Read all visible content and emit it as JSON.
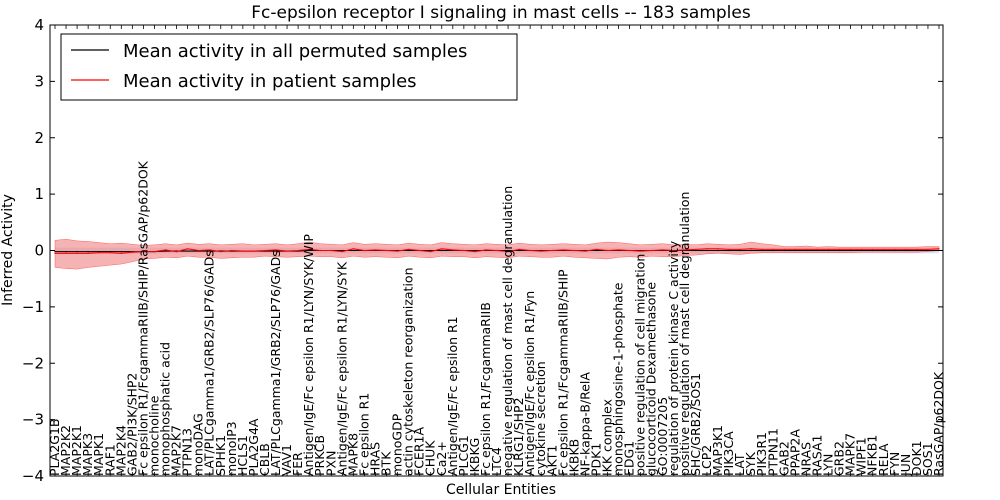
{
  "chart_data": {
    "type": "line",
    "title": "Fc-epsilon receptor I signaling in mast cells -- 183 samples",
    "xlabel": "Cellular Entities",
    "ylabel": "Inferred Activity",
    "ylim": [
      -4,
      4
    ],
    "yticks": [
      -4,
      -3,
      -2,
      -1,
      0,
      1,
      2,
      3,
      4
    ],
    "ytick_labels": [
      "−4",
      "−3",
      "−2",
      "−1",
      "0",
      "1",
      "2",
      "3",
      "4"
    ],
    "grid": false,
    "legend_position": "top-left",
    "categories": [
      "PLA2G1B",
      "MAP2K2",
      "MAP2K1",
      "MAPK3",
      "MAPK1",
      "RAF1",
      "MAP2K4",
      "GAB2/PI3K/SHP2",
      "Fc epsilon R1/FcgammaRIIB/SHIP/RasGAP/p62DOK",
      "monocholine",
      "monophosphatic acid",
      "MAP2K7",
      "PTPN13",
      "monoDAG",
      "LAT/PLCgamma1/GRB2/SLP76/GADs",
      "SPHK1",
      "monoIP3",
      "HCLS1",
      "PLA2G4A",
      "CBLB",
      "LAT/PLCgamma1/GRB2/SLP76/GADs",
      "VAV1",
      "FER",
      "Antigen/IgE/Fc epsilon R1/LYN/SYK/WIP",
      "PRKCB",
      "PXN",
      "Antigen/IgE/Fc epsilon R1/LYN/SYK",
      "MAPK8",
      "Fc epsilon R1",
      "HRAS",
      "BTK",
      "monoGDP",
      "actin cytoskeleton reorganization",
      "FCER1A",
      "CHUK",
      "Ca2+",
      "Antigen/IgE/Fc epsilon R1",
      "PLCG1",
      "IKBKG",
      "Fc epsilon R1/FcgammaRIIB",
      "LTC4",
      "negative regulation of mast cell degranulation",
      "KLRG1/SHP2",
      "Antigen/IgE/Fc epsilon R1/Fyn",
      "cytokine secretion",
      "AKT1",
      "Fc epsilon R1/FcgammaRIIB/SHIP",
      "IKBKB",
      "NF-kappa-B/RelA",
      "PDK1",
      "IKK complex",
      "monosphingosine-1-phosphate",
      "EDG1",
      "positive regulation of cell migration",
      "glucocorticoid Dexamethasone",
      "GO:0007205",
      "regulation of protein kinase C activity",
      "positive regulation of mast cell degranulation",
      "SHC/GRB2/SOS1",
      "LCP2",
      "MAP3K1",
      "PIK3CA",
      "LAT",
      "SYK",
      "PIK3R1",
      "PTPN11",
      "GAB2",
      "PPAP2A",
      "NRAS",
      "RASA1",
      "LYN",
      "GRB2",
      "MAPK7",
      "WIPF1",
      "NFKB1",
      "RELA",
      "FYN",
      "JUN",
      "DOK1",
      "SOS1",
      "RasGAP/p62DOK"
    ],
    "series": [
      {
        "name": "Mean activity in all permuted samples",
        "color": "#000000",
        "values": [
          -0.02,
          -0.02,
          -0.02,
          -0.02,
          -0.02,
          -0.02,
          -0.02,
          -0.02,
          -0.02,
          -0.02,
          -0.01,
          -0.01,
          -0.01,
          -0.01,
          -0.01,
          -0.01,
          -0.01,
          -0.01,
          -0.01,
          -0.01,
          -0.01,
          -0.01,
          -0.01,
          0.0,
          0.0,
          0.0,
          0.0,
          0.0,
          0.0,
          0.0,
          0.0,
          0.0,
          0.0,
          0.0,
          0.0,
          0.0,
          0.0,
          0.0,
          0.0,
          0.0,
          0.0,
          0.0,
          0.0,
          0.0,
          0.0,
          0.0,
          0.0,
          0.0,
          0.0,
          0.0,
          0.0,
          0.0,
          0.0,
          0.0,
          0.0,
          0.0,
          0.0,
          0.0,
          0.0,
          0.0,
          0.0,
          0.0,
          0.0,
          0.0,
          0.0,
          0.0,
          0.0,
          0.0,
          0.0,
          0.0,
          0.0,
          0.0,
          0.0,
          0.0,
          0.0,
          0.0,
          0.0,
          0.0,
          0.0,
          0.0,
          0.0
        ],
        "band_low": [
          -0.06,
          -0.06,
          -0.06,
          -0.06,
          -0.06,
          -0.06,
          -0.06,
          -0.06,
          -0.06,
          -0.06,
          -0.05,
          -0.05,
          -0.05,
          -0.05,
          -0.05,
          -0.05,
          -0.05,
          -0.05,
          -0.05,
          -0.05,
          -0.05,
          -0.05,
          -0.05,
          -0.05,
          -0.05,
          -0.05,
          -0.05,
          -0.05,
          -0.05,
          -0.05,
          -0.05,
          -0.05,
          -0.05,
          -0.05,
          -0.05,
          -0.05,
          -0.05,
          -0.05,
          -0.05,
          -0.05,
          -0.05,
          -0.05,
          -0.05,
          -0.05,
          -0.05,
          -0.05,
          -0.05,
          -0.05,
          -0.05,
          -0.05,
          -0.05,
          -0.05,
          -0.05,
          -0.05,
          -0.05,
          -0.05,
          -0.05,
          -0.05,
          -0.05,
          -0.05,
          -0.05,
          -0.05,
          -0.05,
          -0.05,
          -0.05,
          -0.05,
          -0.05,
          -0.05,
          -0.05,
          -0.05,
          -0.05,
          -0.05,
          -0.05,
          -0.05,
          -0.05,
          -0.05,
          -0.05,
          -0.05,
          -0.05,
          -0.05,
          -0.05
        ],
        "band_high": [
          0.05,
          0.05,
          0.05,
          0.05,
          0.05,
          0.05,
          0.05,
          0.05,
          0.05,
          0.05,
          0.05,
          0.05,
          0.05,
          0.05,
          0.05,
          0.05,
          0.05,
          0.05,
          0.05,
          0.05,
          0.05,
          0.05,
          0.05,
          0.05,
          0.05,
          0.05,
          0.05,
          0.05,
          0.05,
          0.05,
          0.05,
          0.05,
          0.05,
          0.05,
          0.05,
          0.05,
          0.05,
          0.05,
          0.05,
          0.05,
          0.05,
          0.05,
          0.05,
          0.05,
          0.05,
          0.05,
          0.05,
          0.05,
          0.05,
          0.05,
          0.05,
          0.05,
          0.05,
          0.05,
          0.05,
          0.05,
          0.05,
          0.05,
          0.05,
          0.05,
          0.05,
          0.05,
          0.05,
          0.05,
          0.05,
          0.05,
          0.05,
          0.05,
          0.05,
          0.05,
          0.05,
          0.05,
          0.05,
          0.05,
          0.05,
          0.05,
          0.05,
          0.05,
          0.05,
          0.05,
          0.05
        ]
      },
      {
        "name": "Mean activity in patient samples",
        "color": "#ff0000",
        "values": [
          -0.05,
          -0.05,
          -0.05,
          -0.05,
          -0.04,
          -0.04,
          -0.05,
          -0.03,
          -0.02,
          -0.02,
          0.01,
          -0.02,
          0.03,
          0.0,
          0.01,
          -0.02,
          0.0,
          -0.01,
          -0.01,
          0.0,
          0.01,
          -0.01,
          0.0,
          0.02,
          0.0,
          0.0,
          -0.02,
          0.03,
          0.0,
          0.01,
          0.0,
          -0.01,
          0.02,
          0.0,
          -0.02,
          0.03,
          0.01,
          0.0,
          -0.02,
          0.01,
          0.0,
          -0.02,
          0.02,
          0.0,
          -0.01,
          0.0,
          0.01,
          0.0,
          -0.01,
          0.02,
          0.0,
          0.01,
          0.0,
          -0.01,
          0.0,
          0.01,
          0.0,
          0.01,
          0.02,
          0.03,
          0.03,
          0.02,
          0.02,
          0.03,
          0.02,
          0.02,
          0.02,
          0.02,
          0.02,
          0.02,
          0.02,
          0.02,
          0.02,
          0.02,
          0.02,
          0.02,
          0.02,
          0.02,
          0.02,
          0.02,
          0.03
        ],
        "band_low": [
          -0.3,
          -0.32,
          -0.33,
          -0.3,
          -0.28,
          -0.26,
          -0.24,
          -0.2,
          -0.15,
          -0.14,
          -0.12,
          -0.13,
          -0.1,
          -0.12,
          -0.12,
          -0.14,
          -0.13,
          -0.12,
          -0.12,
          -0.1,
          -0.11,
          -0.12,
          -0.11,
          -0.1,
          -0.11,
          -0.11,
          -0.13,
          -0.1,
          -0.12,
          -0.11,
          -0.12,
          -0.13,
          -0.1,
          -0.12,
          -0.13,
          -0.1,
          -0.11,
          -0.11,
          -0.13,
          -0.11,
          -0.12,
          -0.13,
          -0.1,
          -0.11,
          -0.12,
          -0.12,
          -0.1,
          -0.12,
          -0.13,
          -0.14,
          -0.15,
          -0.12,
          -0.11,
          -0.12,
          -0.1,
          -0.11,
          -0.11,
          -0.09,
          -0.08,
          -0.06,
          -0.05,
          -0.06,
          -0.07,
          -0.05,
          -0.04,
          -0.04,
          -0.04,
          -0.04,
          -0.04,
          -0.04,
          -0.04,
          -0.04,
          -0.04,
          -0.03,
          -0.03,
          -0.03,
          -0.03,
          -0.03,
          -0.03,
          -0.02,
          0.0
        ],
        "band_high": [
          0.18,
          0.2,
          0.17,
          0.16,
          0.14,
          0.12,
          0.13,
          0.11,
          0.09,
          0.1,
          0.12,
          0.1,
          0.13,
          0.11,
          0.12,
          0.1,
          0.11,
          0.12,
          0.1,
          0.11,
          0.12,
          0.1,
          0.12,
          0.15,
          0.12,
          0.11,
          0.1,
          0.14,
          0.11,
          0.12,
          0.11,
          0.1,
          0.13,
          0.11,
          0.1,
          0.14,
          0.12,
          0.11,
          0.1,
          0.12,
          0.11,
          0.1,
          0.13,
          0.11,
          0.1,
          0.11,
          0.12,
          0.11,
          0.1,
          0.13,
          0.15,
          0.14,
          0.12,
          0.1,
          0.11,
          0.12,
          0.1,
          0.11,
          0.1,
          0.12,
          0.11,
          0.1,
          0.11,
          0.15,
          0.12,
          0.1,
          0.07,
          0.07,
          0.08,
          0.06,
          0.07,
          0.06,
          0.06,
          0.06,
          0.06,
          0.06,
          0.06,
          0.06,
          0.06,
          0.07,
          0.07
        ]
      }
    ]
  }
}
